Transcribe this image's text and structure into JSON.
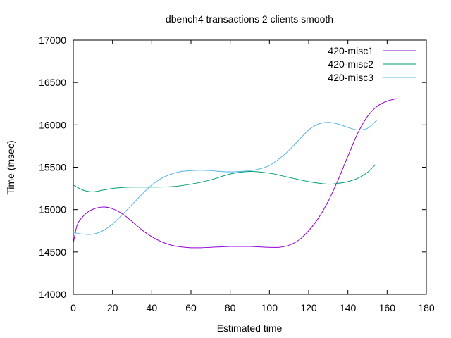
{
  "chart_data": {
    "type": "line",
    "title": "dbench4 transactions 2 clients smooth",
    "xlabel": "Estimated time",
    "ylabel": "Time (msec)",
    "xlim": [
      0,
      180
    ],
    "ylim": [
      14000,
      17000
    ],
    "xticks": [
      "0",
      "20",
      "40",
      "60",
      "80",
      "100",
      "120",
      "140",
      "160",
      "180"
    ],
    "yticks": [
      "14000",
      "14500",
      "15000",
      "15500",
      "16000",
      "16500",
      "17000"
    ],
    "grid": false,
    "legend_position": "top-right",
    "series": [
      {
        "name": "420-misc1",
        "color": "#9400d3",
        "x": [
          0,
          2,
          5,
          8,
          12,
          16,
          20,
          25,
          30,
          35,
          40,
          45,
          50,
          55,
          60,
          65,
          70,
          75,
          80,
          85,
          90,
          95,
          100,
          105,
          110,
          115,
          120,
          125,
          130,
          135,
          140,
          145,
          150,
          155,
          160,
          165
        ],
        "y": [
          14600,
          14820,
          14920,
          14980,
          15020,
          15030,
          15010,
          14950,
          14860,
          14760,
          14680,
          14620,
          14580,
          14560,
          14550,
          14550,
          14555,
          14560,
          14565,
          14565,
          14565,
          14560,
          14555,
          14555,
          14580,
          14640,
          14750,
          14900,
          15100,
          15350,
          15630,
          15900,
          16100,
          16220,
          16280,
          16310
        ]
      },
      {
        "name": "420-misc2",
        "color": "#009e73",
        "x": [
          0,
          5,
          10,
          15,
          20,
          25,
          30,
          40,
          50,
          60,
          70,
          80,
          90,
          100,
          110,
          120,
          130,
          135,
          140,
          145,
          150,
          154
        ],
        "y": [
          15290,
          15230,
          15210,
          15230,
          15250,
          15260,
          15265,
          15265,
          15270,
          15300,
          15350,
          15420,
          15450,
          15430,
          15380,
          15330,
          15300,
          15310,
          15330,
          15370,
          15440,
          15530
        ]
      },
      {
        "name": "420-misc3",
        "color": "#56b4e9",
        "x": [
          0,
          5,
          10,
          15,
          20,
          25,
          30,
          35,
          40,
          45,
          50,
          55,
          60,
          65,
          70,
          75,
          80,
          85,
          90,
          95,
          100,
          105,
          110,
          115,
          120,
          125,
          130,
          135,
          140,
          145,
          150,
          155
        ],
        "y": [
          14730,
          14710,
          14710,
          14750,
          14830,
          14940,
          15060,
          15180,
          15290,
          15370,
          15420,
          15450,
          15460,
          15465,
          15460,
          15450,
          15445,
          15450,
          15460,
          15480,
          15520,
          15600,
          15700,
          15820,
          15940,
          16010,
          16030,
          16010,
          15970,
          15940,
          15960,
          16060
        ]
      }
    ]
  }
}
